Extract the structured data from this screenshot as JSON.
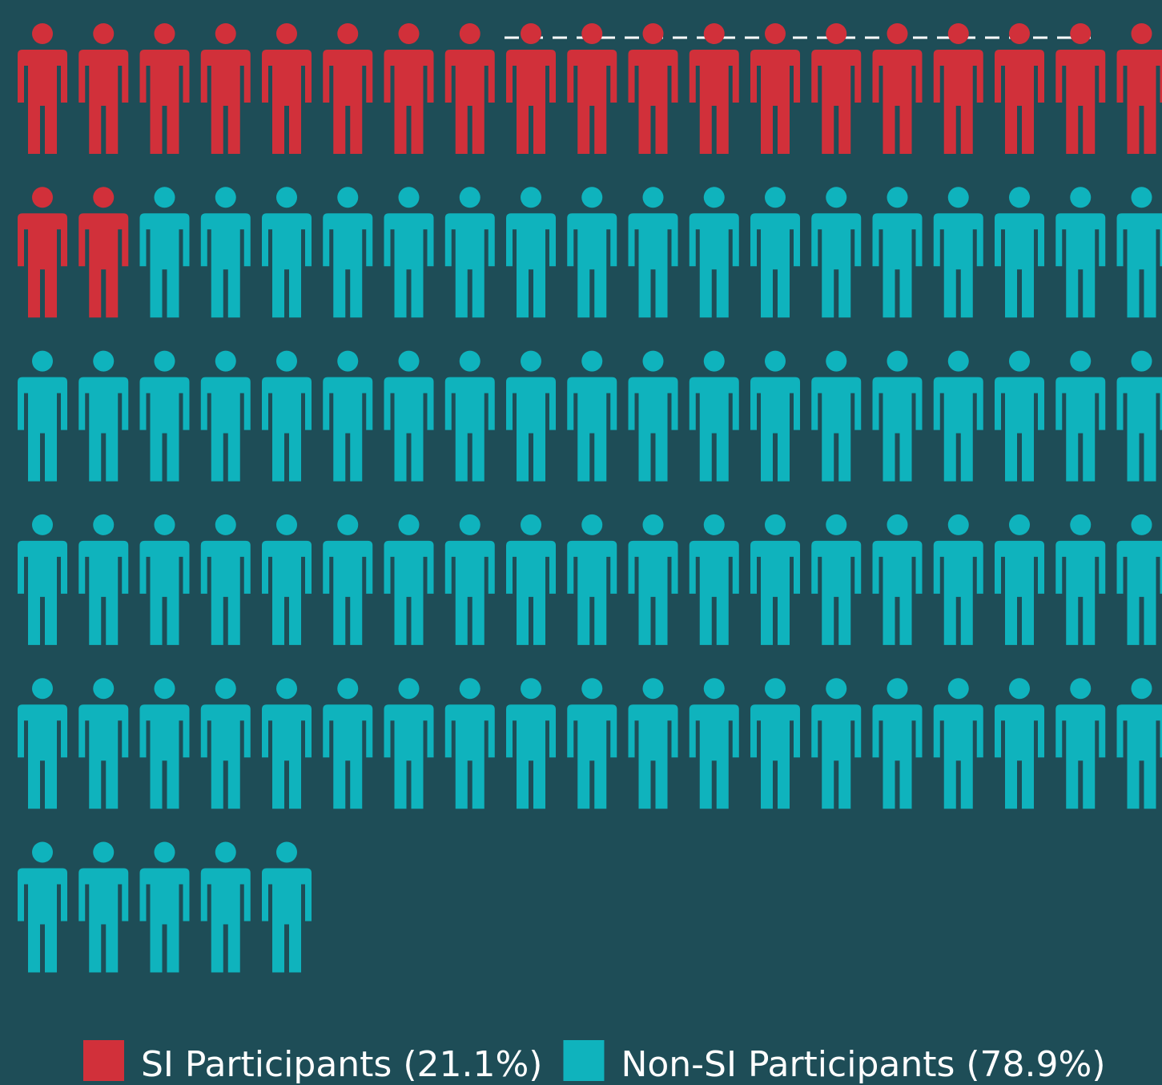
{
  "chart_data": {
    "type": "pictogram",
    "per_row": 19,
    "series": [
      {
        "name": "SI Participants (21.1%)",
        "color": "#d1303a",
        "value": 21
      },
      {
        "name": "Non-SI Participants (78.9%)",
        "color": "#0fb3bd",
        "value": 79
      }
    ]
  }
}
